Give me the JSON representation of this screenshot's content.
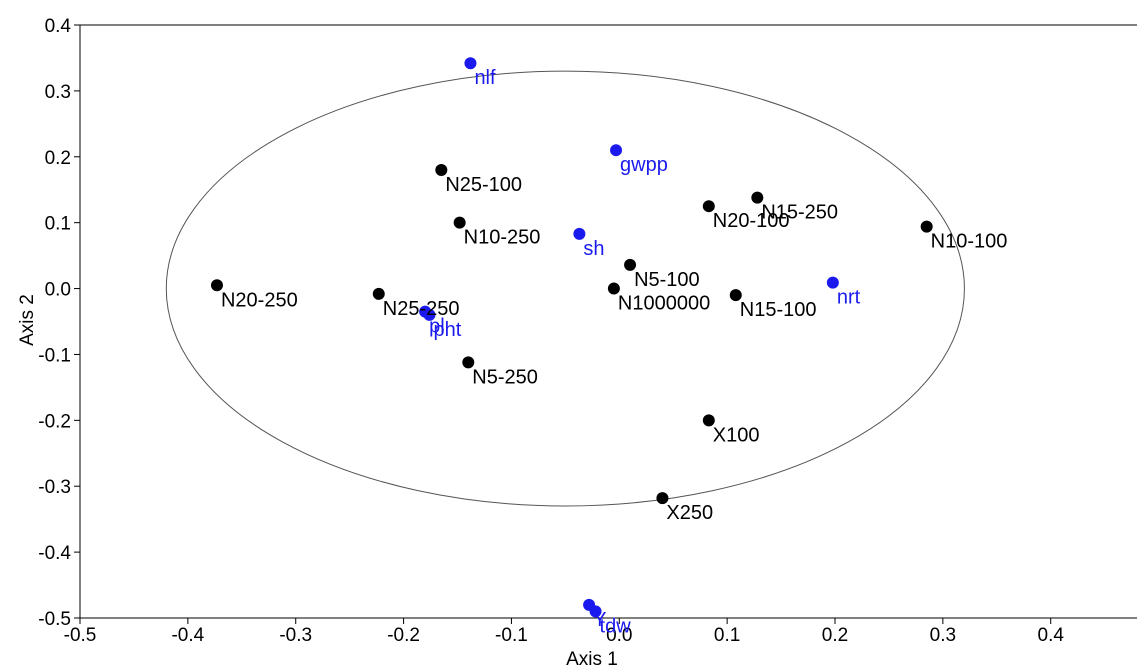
{
  "chart_data": {
    "type": "scatter",
    "title": "",
    "xlabel": "Axis 1",
    "ylabel": "Axis 2",
    "xlim": [
      -0.5,
      0.48
    ],
    "ylim": [
      -0.5,
      0.4
    ],
    "x_ticks": [
      "-0.5",
      "-0.4",
      "-0.3",
      "-0.2",
      "-0.1",
      "0.0",
      "0.1",
      "0.2",
      "0.3",
      "0.4"
    ],
    "x_tick_values": [
      -0.5,
      -0.4,
      -0.3,
      -0.2,
      -0.1,
      0.0,
      0.1,
      0.2,
      0.3,
      0.4
    ],
    "y_ticks": [
      "0.4",
      "0.3",
      "0.2",
      "0.1",
      "0.0",
      "-0.1",
      "-0.2",
      "-0.3",
      "-0.4",
      "-0.5"
    ],
    "y_tick_values": [
      0.4,
      0.3,
      0.2,
      0.1,
      0.0,
      -0.1,
      -0.2,
      -0.3,
      -0.4,
      -0.5
    ],
    "grid": false,
    "ellipse": {
      "cx": -0.05,
      "cy": 0.0,
      "rx": 0.37,
      "ry": 0.33
    },
    "series": [
      {
        "color": "#000000",
        "points": [
          {
            "label": "N25-100",
            "x": -0.165,
            "y": 0.18
          },
          {
            "label": "N10-250",
            "x": -0.148,
            "y": 0.1
          },
          {
            "label": "N20-100",
            "x": 0.083,
            "y": 0.125
          },
          {
            "label": "N15-250",
            "x": 0.128,
            "y": 0.138
          },
          {
            "label": "N10-100",
            "x": 0.285,
            "y": 0.094
          },
          {
            "label": "N20-250",
            "x": -0.373,
            "y": 0.005
          },
          {
            "label": "N25-250",
            "x": -0.223,
            "y": -0.008
          },
          {
            "label": "N5-100",
            "x": 0.01,
            "y": 0.036
          },
          {
            "label": "N1000000",
            "x": -0.005,
            "y": 0.0
          },
          {
            "label": "N15-100",
            "x": 0.108,
            "y": -0.01
          },
          {
            "label": "N5-250",
            "x": -0.14,
            "y": -0.112
          },
          {
            "label": "X100",
            "x": 0.083,
            "y": -0.2
          },
          {
            "label": "X250",
            "x": 0.04,
            "y": -0.318
          }
        ]
      },
      {
        "color": "#1a1aee",
        "points": [
          {
            "label": "nlf",
            "x": -0.138,
            "y": 0.342
          },
          {
            "label": "gwpp",
            "x": -0.003,
            "y": 0.21
          },
          {
            "label": "sh",
            "x": -0.037,
            "y": 0.083
          },
          {
            "label": "nrt",
            "x": 0.198,
            "y": 0.009
          },
          {
            "label": "pl",
            "x": -0.18,
            "y": -0.035
          },
          {
            "label": "pht",
            "x": -0.176,
            "y": -0.04
          },
          {
            "label": "Y",
            "x": -0.028,
            "y": -0.48
          },
          {
            "label": "tdw",
            "x": -0.022,
            "y": -0.49
          }
        ]
      }
    ]
  }
}
